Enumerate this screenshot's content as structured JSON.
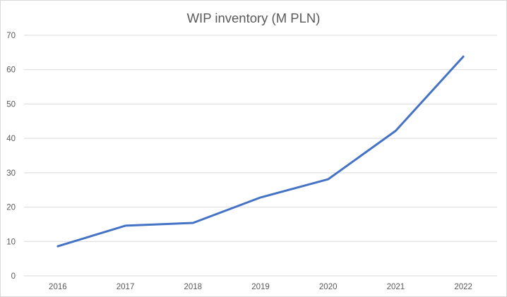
{
  "chart_data": {
    "type": "line",
    "title": "WIP inventory (M PLN)",
    "xlabel": "",
    "ylabel": "",
    "categories": [
      "2016",
      "2017",
      "2018",
      "2019",
      "2020",
      "2021",
      "2022"
    ],
    "series": [
      {
        "values": [
          8.6,
          14.6,
          15.4,
          22.8,
          28.1,
          42.2,
          63.8
        ],
        "color": "#4472c4"
      }
    ],
    "ylim": [
      0,
      70
    ],
    "yticks": [
      "0",
      "10",
      "20",
      "30",
      "40",
      "50",
      "60",
      "70"
    ],
    "grid": true,
    "legend": "none"
  }
}
